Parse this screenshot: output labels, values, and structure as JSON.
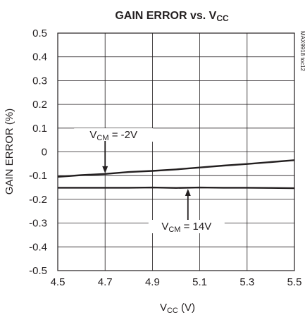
{
  "chart_data": {
    "type": "line",
    "title": "GAIN ERROR vs. V",
    "title_sub": "CC",
    "xlabel": "V",
    "xlabel_sub": "CC",
    "xlabel_unit": " (V)",
    "ylabel": "GAIN ERROR (%)",
    "xlim": [
      4.5,
      5.5
    ],
    "ylim": [
      -0.5,
      0.5
    ],
    "x_ticks": [
      "4.5",
      "4.7",
      "4.9",
      "5.1",
      "5.3",
      "5.5"
    ],
    "x_tick_values": [
      4.5,
      4.7,
      4.9,
      5.1,
      5.3,
      5.5
    ],
    "y_ticks": [
      "0.5",
      "0.4",
      "0.3",
      "0.2",
      "0.1",
      "0",
      "-0.1",
      "-0.2",
      "-0.3",
      "-0.4",
      "-0.5"
    ],
    "y_tick_values": [
      0.5,
      0.4,
      0.3,
      0.2,
      0.1,
      0,
      -0.1,
      -0.2,
      -0.3,
      -0.4,
      -0.5
    ],
    "x_grid_values": [
      4.5,
      4.7,
      4.9,
      5.1,
      5.3,
      5.5
    ],
    "grid": true,
    "series": [
      {
        "label_main": "V",
        "label_sub": "CM",
        "label_rest": " = -2V",
        "x": [
          4.5,
          4.6,
          4.7,
          4.8,
          4.9,
          5.0,
          5.1,
          5.2,
          5.3,
          5.4,
          5.5
        ],
        "y": [
          -0.105,
          -0.098,
          -0.093,
          -0.085,
          -0.08,
          -0.074,
          -0.066,
          -0.058,
          -0.051,
          -0.043,
          -0.035
        ]
      },
      {
        "label_main": "V",
        "label_sub": "CM",
        "label_rest": " = 14V",
        "x": [
          4.5,
          4.6,
          4.7,
          4.8,
          4.9,
          5.0,
          5.1,
          5.2,
          5.3,
          5.4,
          5.5
        ],
        "y": [
          -0.151,
          -0.151,
          -0.151,
          -0.151,
          -0.15,
          -0.152,
          -0.15,
          -0.151,
          -0.151,
          -0.152,
          -0.153
        ]
      }
    ],
    "annotations": [
      {
        "series": 0,
        "x": 4.7,
        "y": -0.093,
        "arrow": "down"
      },
      {
        "series": 1,
        "x": 5.05,
        "y": -0.15,
        "arrow": "up"
      }
    ],
    "part_note": "MAX9918 toc12",
    "line_color": "#231f20"
  }
}
